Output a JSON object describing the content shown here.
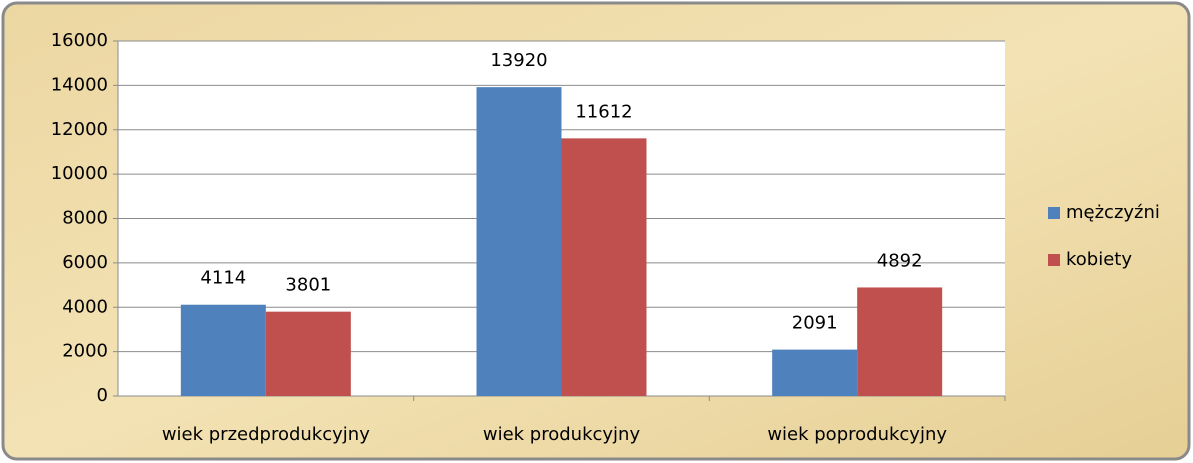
{
  "chart_data": {
    "type": "bar",
    "categories": [
      "wiek przedprodukcyjny",
      "wiek produkcyjny",
      "wiek poprodukcyjny"
    ],
    "series": [
      {
        "name": "mężczyźni",
        "color": "#4f81bd",
        "values": [
          4114,
          13920,
          2091
        ]
      },
      {
        "name": "kobiety",
        "color": "#c0504d",
        "values": [
          3801,
          11612,
          4892
        ]
      }
    ],
    "ylim": [
      0,
      16000
    ],
    "yticks": [
      0,
      2000,
      4000,
      6000,
      8000,
      10000,
      12000,
      14000,
      16000
    ],
    "grid": true,
    "legend": "right"
  }
}
